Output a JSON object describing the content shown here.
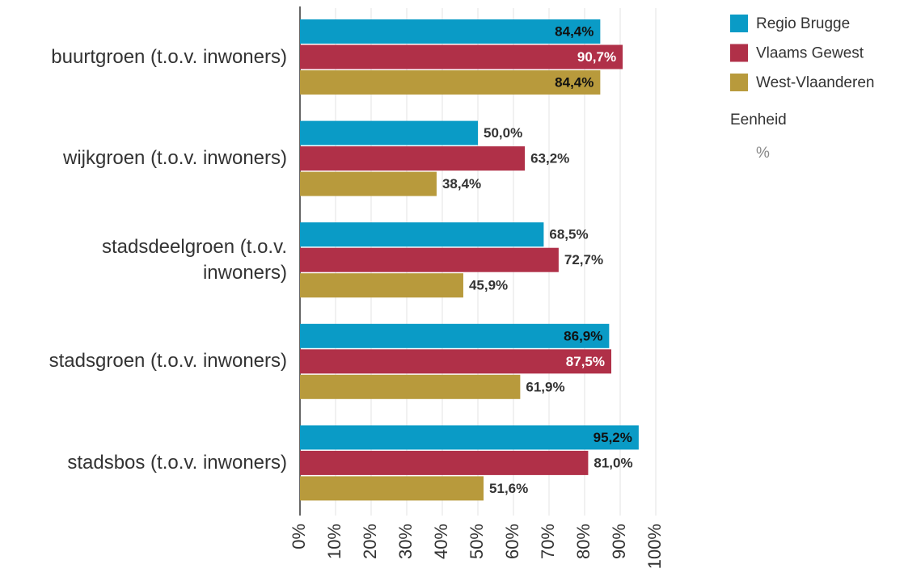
{
  "chart_data": {
    "type": "bar",
    "orientation": "horizontal",
    "categories": [
      "buurtgroen (t.o.v. inwoners)",
      "wijkgroen (t.o.v. inwoners)",
      "stadsdeelgroen (t.o.v. inwoners)",
      "stadsgroen (t.o.v. inwoners)",
      "stadsbos (t.o.v. inwoners)"
    ],
    "series": [
      {
        "name": "Regio Brugge",
        "color": "#0a9bc6",
        "values": [
          84.4,
          50.0,
          68.5,
          86.9,
          95.2
        ],
        "value_labels": [
          "84,4%",
          "50,0%",
          "68,5%",
          "86,9%",
          "95,2%"
        ]
      },
      {
        "name": "Vlaams Gewest",
        "color": "#b03048",
        "values": [
          90.7,
          63.2,
          72.7,
          87.5,
          81.0
        ],
        "value_labels": [
          "90,7%",
          "63,2%",
          "72,7%",
          "87,5%",
          "81,0%"
        ]
      },
      {
        "name": "West-Vlaanderen",
        "color": "#b89a3c",
        "values": [
          84.4,
          38.4,
          45.9,
          61.9,
          51.6
        ],
        "value_labels": [
          "84,4%",
          "38,4%",
          "45,9%",
          "61,9%",
          "51,6%"
        ]
      }
    ],
    "xlim": [
      0,
      100
    ],
    "xticks": [
      {
        "value": 0,
        "label": "0%"
      },
      {
        "value": 10,
        "label": "10%"
      },
      {
        "value": 20,
        "label": "20%"
      },
      {
        "value": 30,
        "label": "30%"
      },
      {
        "value": 40,
        "label": "40%"
      },
      {
        "value": 50,
        "label": "50%"
      },
      {
        "value": 60,
        "label": "60%"
      },
      {
        "value": 70,
        "label": "70%"
      },
      {
        "value": 80,
        "label": "80%"
      },
      {
        "value": 90,
        "label": "90%"
      },
      {
        "value": 100,
        "label": "100%"
      }
    ],
    "grid": true,
    "legend": {
      "position": "right",
      "unit_title": "Eenheid",
      "unit": "%"
    }
  }
}
